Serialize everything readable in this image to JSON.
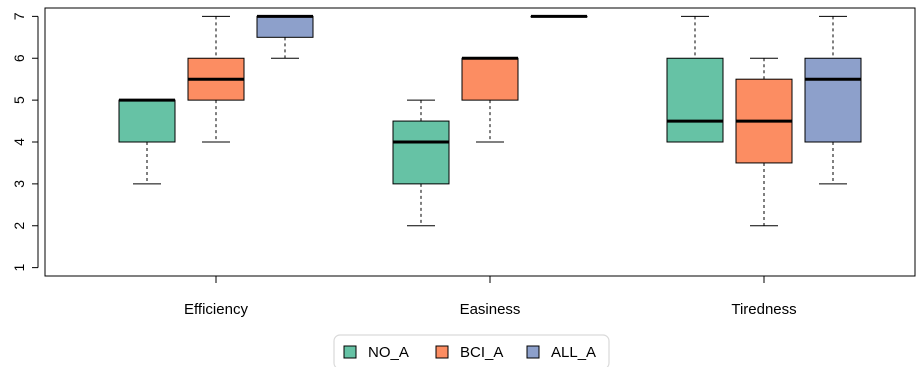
{
  "chart_data": {
    "type": "boxplot",
    "title": "",
    "xlabel": "",
    "ylabel": "",
    "ylim": [
      0.8,
      7.2
    ],
    "yticks": [
      "1",
      "2",
      "3",
      "4",
      "5",
      "6",
      "7"
    ],
    "categories": [
      "Efficiency",
      "Easiness",
      "Tiredness"
    ],
    "legend_position": "bottom",
    "series": [
      {
        "name": "NO_A",
        "color": "#66C2A5",
        "boxes": [
          {
            "min": 3,
            "q1": 4,
            "median": 5,
            "q3": 5,
            "max": 5
          },
          {
            "min": 2,
            "q1": 3,
            "median": 4,
            "q3": 4.5,
            "max": 5
          },
          {
            "min": 4,
            "q1": 4,
            "median": 4.5,
            "q3": 6,
            "max": 7
          }
        ]
      },
      {
        "name": "BCI_A",
        "color": "#FC8D62",
        "boxes": [
          {
            "min": 4,
            "q1": 5,
            "median": 5.5,
            "q3": 6,
            "max": 7
          },
          {
            "min": 4,
            "q1": 5,
            "median": 6,
            "q3": 6,
            "max": 6
          },
          {
            "min": 2,
            "q1": 3.5,
            "median": 4.5,
            "q3": 5.5,
            "max": 6
          }
        ]
      },
      {
        "name": "ALL_A",
        "color": "#8DA0CB",
        "boxes": [
          {
            "min": 6,
            "q1": 6.5,
            "median": 7,
            "q3": 7,
            "max": 7
          },
          {
            "min": 7,
            "q1": 7,
            "median": 7,
            "q3": 7,
            "max": 7
          },
          {
            "min": 3,
            "q1": 4,
            "median": 5.5,
            "q3": 6,
            "max": 7
          }
        ]
      }
    ]
  }
}
